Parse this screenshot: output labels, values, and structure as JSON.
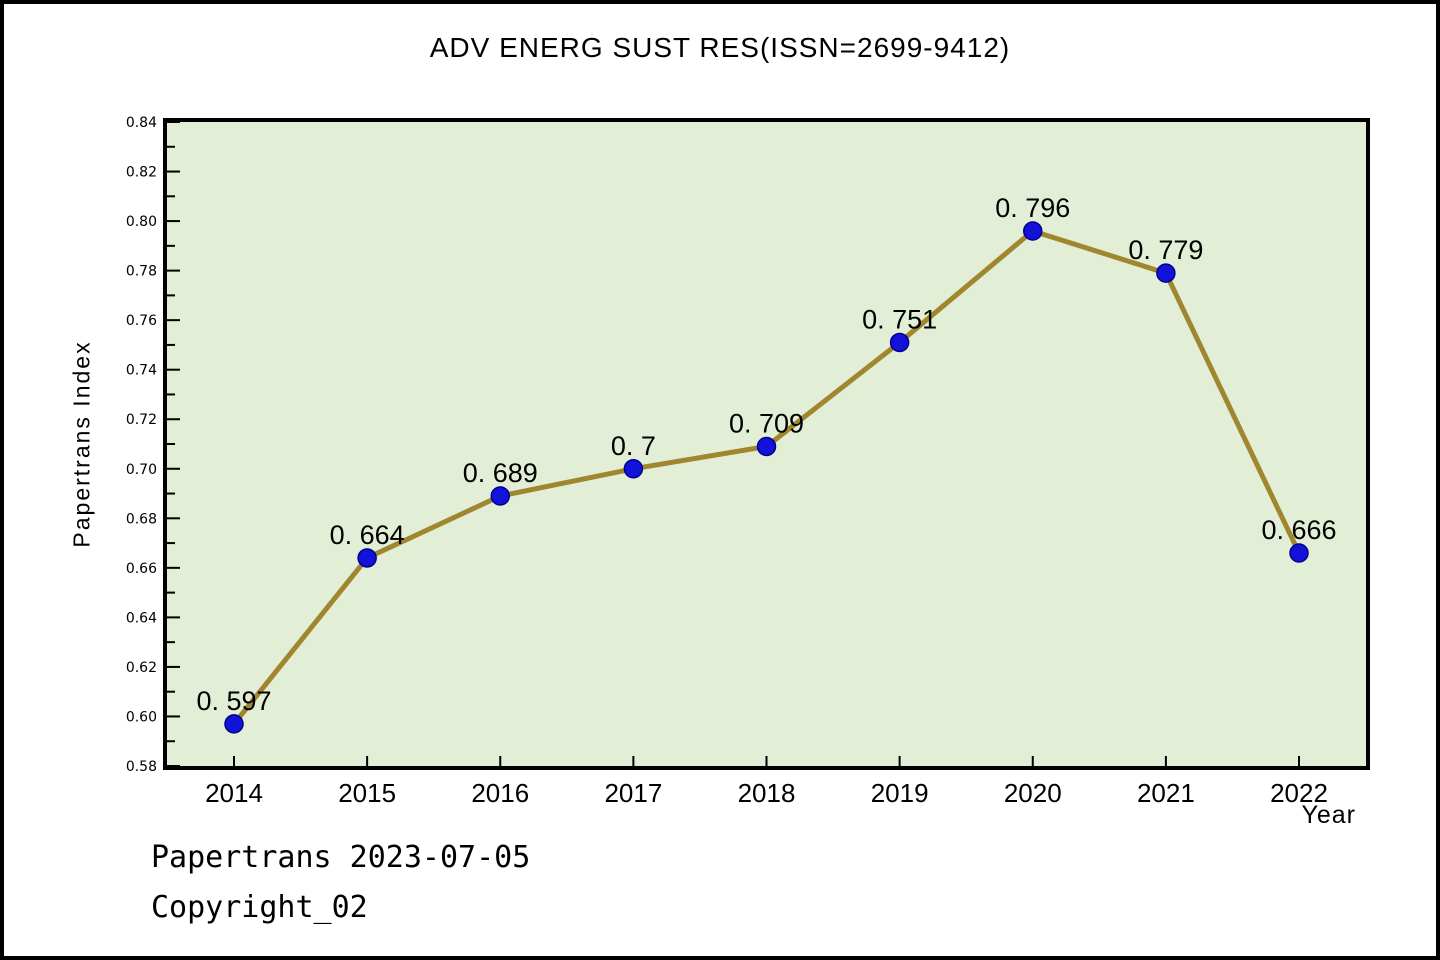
{
  "title": "ADV ENERG SUST RES(ISSN=2699-9412)",
  "footer": {
    "line1": "Papertrans 2023-07-05",
    "line2": "Copyright_02"
  },
  "chart_data": {
    "type": "line",
    "title": "ADV ENERG SUST RES(ISSN=2699-9412)",
    "xlabel": "Year",
    "ylabel": "Papertrans Index",
    "categories": [
      "2014",
      "2015",
      "2016",
      "2017",
      "2018",
      "2019",
      "2020",
      "2021",
      "2022"
    ],
    "series": [
      {
        "name": "Papertrans Index",
        "values": [
          0.597,
          0.664,
          0.689,
          0.7,
          0.709,
          0.751,
          0.796,
          0.779,
          0.666
        ],
        "point_labels": [
          "0. 597",
          "0. 664",
          "0. 689",
          "0. 7",
          "0. 709",
          "0. 751",
          "0. 796",
          "0. 779",
          "0. 666"
        ]
      }
    ],
    "ylim": [
      0.58,
      0.84
    ],
    "ytick_step": 0.02,
    "ytick_minor_step": 0.01,
    "grid": false,
    "legend": false,
    "colors": {
      "line": "#a0872f",
      "marker": "#1212d9",
      "marker_edge": "#000090",
      "plot_bg": "#e2eed6",
      "text": "#000000",
      "axis": "#000000"
    }
  }
}
